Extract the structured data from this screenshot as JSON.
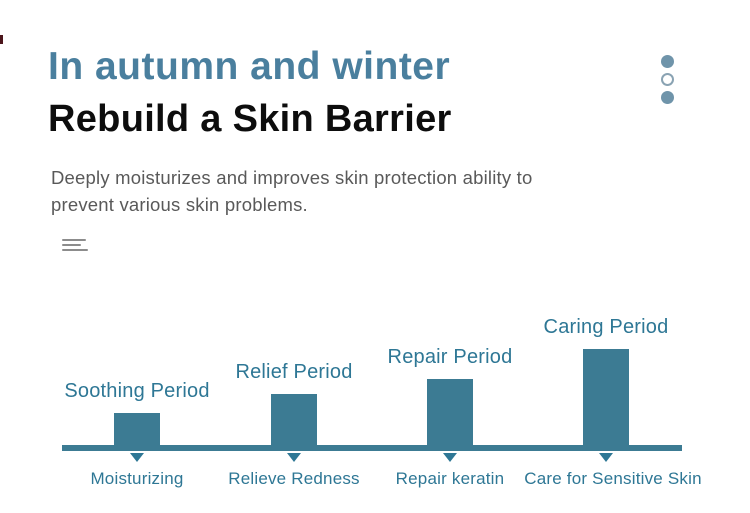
{
  "header": {
    "accent_title": "In autumn and winter",
    "main_title": "Rebuild a Skin Barrier",
    "description_line1": "Deeply moisturizes and improves skin protection ability to",
    "description_line2": "prevent various skin problems.",
    "carousel_dots": {
      "count": 3,
      "states": [
        "filled",
        "outline",
        "filled"
      ]
    }
  },
  "colors": {
    "accent_teal": "#4a7f9e",
    "title_black": "#0d0d0d",
    "body_gray": "#595959",
    "chart_teal": "#3c7b93",
    "chart_text_teal": "#2e7795",
    "dot_fill": "#6f94aa",
    "dot_outline": "#8aa3b3",
    "icon_gray": "#8c8c8c"
  },
  "chart_data": {
    "type": "bar",
    "title": "",
    "xlabel": "",
    "ylabel": "",
    "legend": false,
    "grid": false,
    "axis_style": "single horizontal timeline with downward arrow markers under each bar",
    "categories": [
      "Moisturizing",
      "Relieve Redness",
      "Repair keratin",
      "Care for Sensitive Skin"
    ],
    "values": [
      32,
      51,
      66,
      96
    ],
    "value_unit": "relative bar height, px (no numeric axis shown)",
    "bars": [
      {
        "period": "Soothing Period",
        "stage": "Moisturizing"
      },
      {
        "period": "Relief Period",
        "stage": "Relieve Redness"
      },
      {
        "period": "Repair Period",
        "stage": "Repair keratin"
      },
      {
        "period": "Caring Period",
        "stage": "Care for Sensitive Skin"
      }
    ]
  }
}
